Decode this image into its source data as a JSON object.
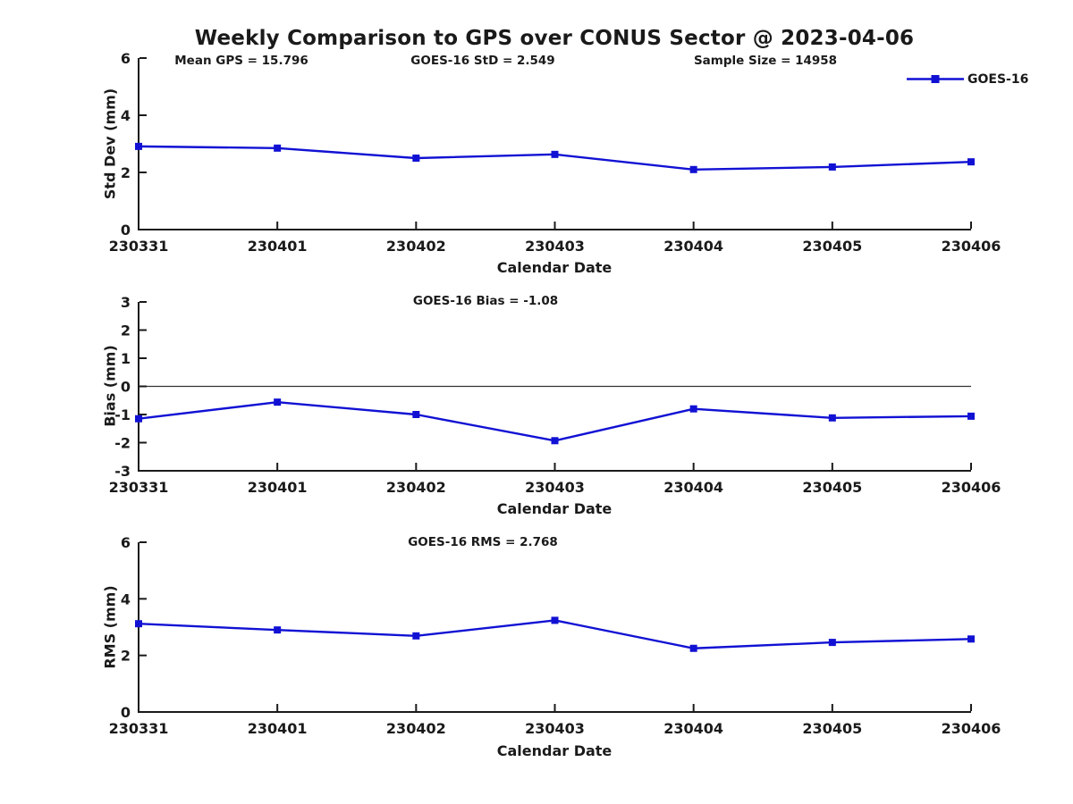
{
  "figure": {
    "title": "Weekly Comparison to GPS over CONUS Sector @ 2023-04-06",
    "legend": {
      "label": "GOES-16",
      "position": "top-right",
      "marker": "square"
    },
    "colors": {
      "line": "#1111d4",
      "marker": "#1111d4",
      "axis": "#1a1a1a",
      "text": "#1a1a1a",
      "zero_line": "#333333"
    }
  },
  "chart_data": [
    {
      "type": "line",
      "title": "",
      "categories": [
        "230331",
        "230401",
        "230402",
        "230403",
        "230404",
        "230405",
        "230406"
      ],
      "series": [
        {
          "name": "GOES-16",
          "values": [
            2.91,
            2.85,
            2.5,
            2.63,
            2.1,
            2.19,
            2.37
          ]
        }
      ],
      "xlabel": "Calendar Date",
      "ylabel": "Std Dev (mm)",
      "ylim": [
        0,
        6
      ],
      "yticks": [
        0,
        2,
        4,
        6
      ],
      "grid": false,
      "zero_line": false,
      "legend_visible": true,
      "annotations": [
        {
          "text": "Mean GPS = 15.796",
          "position": "top-left"
        },
        {
          "text": "GOES-16 StD = 2.549",
          "position": "top-center"
        },
        {
          "text": "Sample Size = 14958",
          "position": "top-right"
        }
      ]
    },
    {
      "type": "line",
      "title": "",
      "categories": [
        "230331",
        "230401",
        "230402",
        "230403",
        "230404",
        "230405",
        "230406"
      ],
      "series": [
        {
          "name": "GOES-16",
          "values": [
            -1.15,
            -0.56,
            -1.0,
            -1.93,
            -0.8,
            -1.12,
            -1.06
          ]
        }
      ],
      "xlabel": "Calendar Date",
      "ylabel": "Bias (mm)",
      "ylim": [
        -3,
        3
      ],
      "yticks": [
        -3,
        -2,
        -1,
        0,
        1,
        2,
        3
      ],
      "grid": false,
      "zero_line": true,
      "legend_visible": false,
      "annotations": [
        {
          "text": "GOES-16 Bias  = -1.08",
          "position": "top-center"
        }
      ]
    },
    {
      "type": "line",
      "title": "",
      "categories": [
        "230331",
        "230401",
        "230402",
        "230403",
        "230404",
        "230405",
        "230406"
      ],
      "series": [
        {
          "name": "GOES-16",
          "values": [
            3.12,
            2.9,
            2.69,
            3.24,
            2.25,
            2.46,
            2.58
          ]
        }
      ],
      "xlabel": "Calendar Date",
      "ylabel": "RMS (mm)",
      "ylim": [
        0,
        6
      ],
      "yticks": [
        0,
        2,
        4,
        6
      ],
      "grid": false,
      "zero_line": false,
      "legend_visible": false,
      "annotations": [
        {
          "text": "GOES-16 RMS = 2.768",
          "position": "top-center"
        }
      ]
    }
  ]
}
